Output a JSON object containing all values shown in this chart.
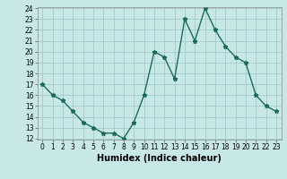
{
  "x": [
    0,
    1,
    2,
    3,
    4,
    5,
    6,
    7,
    8,
    9,
    10,
    11,
    12,
    13,
    14,
    15,
    16,
    17,
    18,
    19,
    20,
    21,
    22,
    23
  ],
  "y": [
    17,
    16,
    15.5,
    14.5,
    13.5,
    13,
    12.5,
    12.5,
    12,
    13.5,
    16,
    20,
    19.5,
    17.5,
    23,
    21,
    24,
    22,
    20.5,
    19.5,
    19,
    16,
    15,
    14.5
  ],
  "line_color": "#1a6b5a",
  "marker": "*",
  "bg_color": "#c8e8e8",
  "grid_color": "#a0cccc",
  "xlabel": "Humidex (Indice chaleur)",
  "ylim": [
    12,
    24
  ],
  "xlim": [
    -0.5,
    23.5
  ],
  "yticks": [
    12,
    13,
    14,
    15,
    16,
    17,
    18,
    19,
    20,
    21,
    22,
    23,
    24
  ],
  "xticks": [
    0,
    1,
    2,
    3,
    4,
    5,
    6,
    7,
    8,
    9,
    10,
    11,
    12,
    13,
    14,
    15,
    16,
    17,
    18,
    19,
    20,
    21,
    22,
    23
  ],
  "xtick_labels": [
    "0",
    "1",
    "2",
    "3",
    "4",
    "5",
    "6",
    "7",
    "8",
    "9",
    "10",
    "11",
    "12",
    "13",
    "14",
    "15",
    "16",
    "17",
    "18",
    "19",
    "20",
    "21",
    "22",
    "23"
  ],
  "tick_fontsize": 5.5,
  "xlabel_fontsize": 7,
  "linewidth": 1.0,
  "markersize": 3.5
}
